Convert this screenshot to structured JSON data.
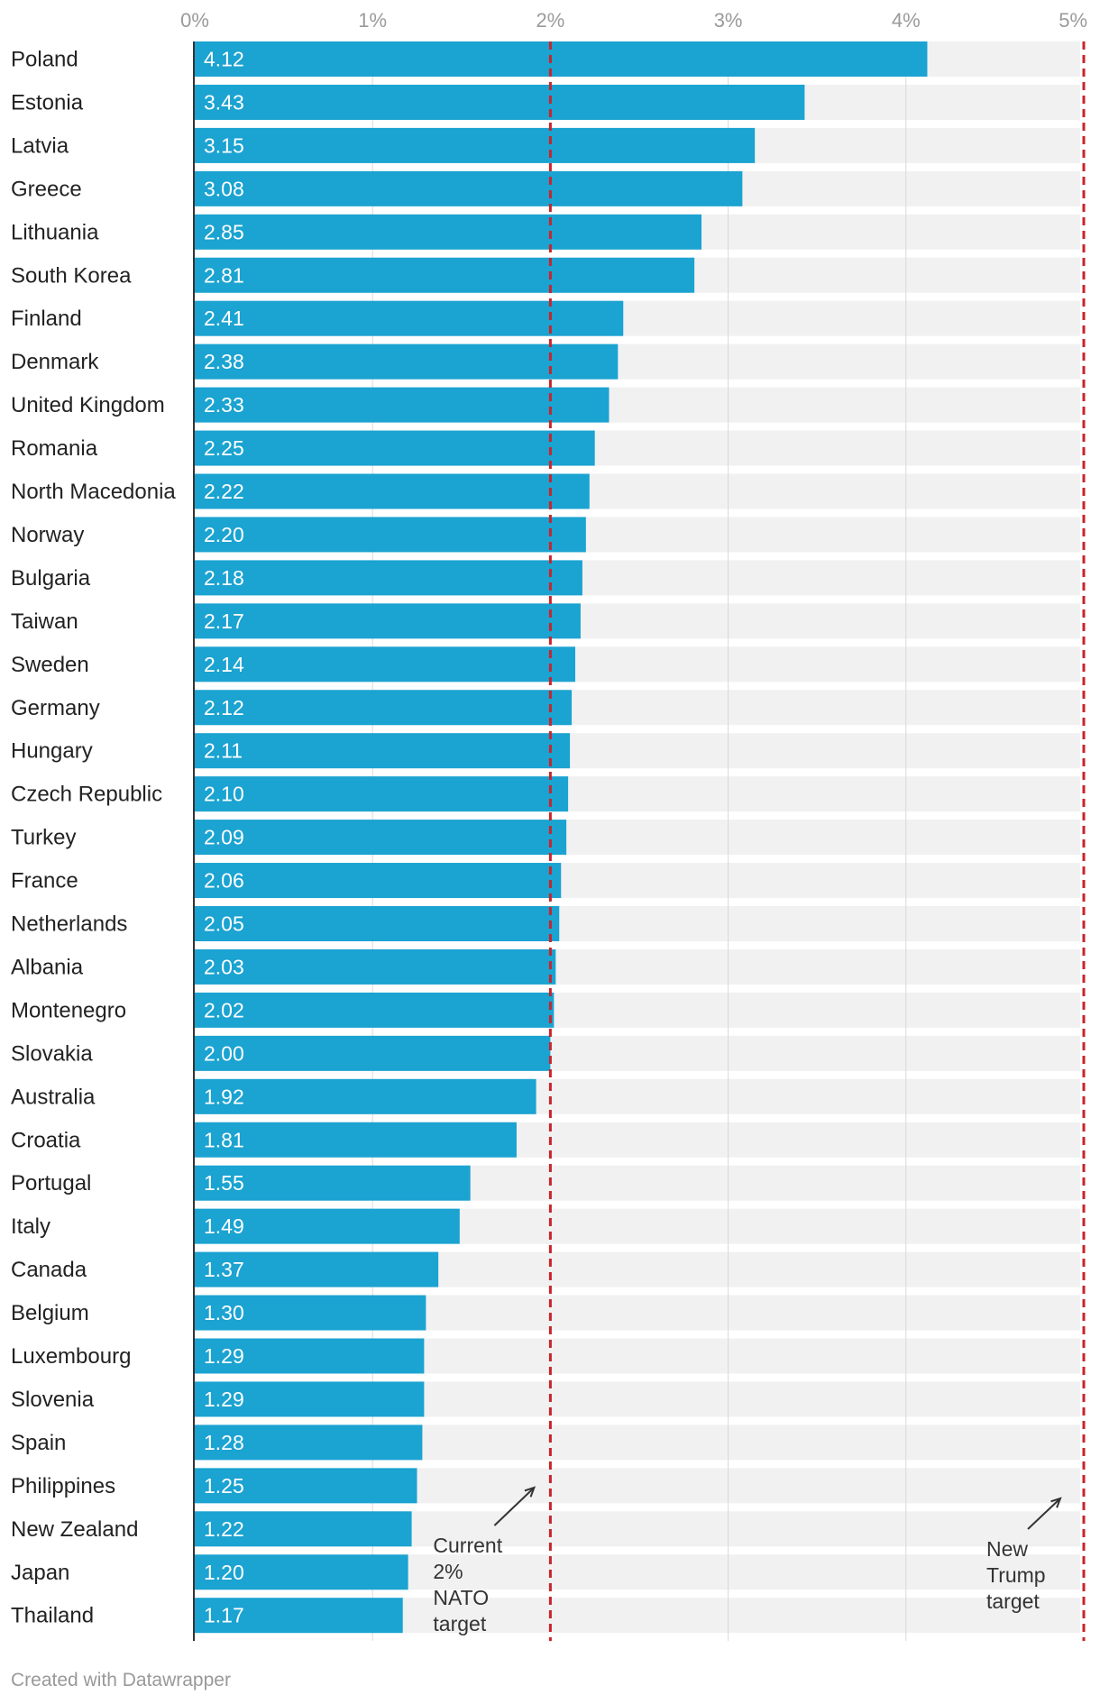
{
  "chart_data": {
    "type": "bar",
    "orientation": "horizontal",
    "categories": [
      "Poland",
      "Estonia",
      "Latvia",
      "Greece",
      "Lithuania",
      "South Korea",
      "Finland",
      "Denmark",
      "United Kingdom",
      "Romania",
      "North Macedonia",
      "Norway",
      "Bulgaria",
      "Taiwan",
      "Sweden",
      "Germany",
      "Hungary",
      "Czech Republic",
      "Turkey",
      "France",
      "Netherlands",
      "Albania",
      "Montenegro",
      "Slovakia",
      "Australia",
      "Croatia",
      "Portugal",
      "Italy",
      "Canada",
      "Belgium",
      "Luxembourg",
      "Slovenia",
      "Spain",
      "Philippines",
      "New Zealand",
      "Japan",
      "Thailand"
    ],
    "values": [
      4.12,
      3.43,
      3.15,
      3.08,
      2.85,
      2.81,
      2.41,
      2.38,
      2.33,
      2.25,
      2.22,
      2.2,
      2.18,
      2.17,
      2.14,
      2.12,
      2.11,
      2.1,
      2.09,
      2.06,
      2.05,
      2.03,
      2.02,
      2.0,
      1.92,
      1.81,
      1.55,
      1.49,
      1.37,
      1.3,
      1.29,
      1.29,
      1.28,
      1.25,
      1.22,
      1.2,
      1.17
    ],
    "value_labels": [
      "4.12",
      "3.43",
      "3.15",
      "3.08",
      "2.85",
      "2.81",
      "2.41",
      "2.38",
      "2.33",
      "2.25",
      "2.22",
      "2.20",
      "2.18",
      "2.17",
      "2.14",
      "2.12",
      "2.11",
      "2.10",
      "2.09",
      "2.06",
      "2.05",
      "2.03",
      "2.02",
      "2.00",
      "1.92",
      "1.81",
      "1.55",
      "1.49",
      "1.37",
      "1.30",
      "1.29",
      "1.29",
      "1.28",
      "1.25",
      "1.22",
      "1.20",
      "1.17"
    ],
    "xlim": [
      0,
      5
    ],
    "xticks": [
      0,
      1,
      2,
      3,
      4,
      5
    ],
    "xtick_labels": [
      "0%",
      "1%",
      "2%",
      "3%",
      "4%",
      "5%"
    ],
    "grid": true,
    "axis_position": "top",
    "reference_lines": [
      {
        "value": 2,
        "label": [
          "Current",
          "2%",
          "NATO",
          "target"
        ]
      },
      {
        "value": 5,
        "label": [
          "New",
          "Trump",
          "target"
        ]
      }
    ],
    "colors": {
      "bar": "#1ba3d1",
      "track": "#f1f1f1",
      "reference_line": "#c9242b",
      "bar_label": "#ffffff",
      "category_label": "#222222",
      "tick_label": "#9a9a9a",
      "grid": "#d9d9d9",
      "annotation": "#333333"
    }
  },
  "footer": {
    "credit": "Created with Datawrapper"
  }
}
